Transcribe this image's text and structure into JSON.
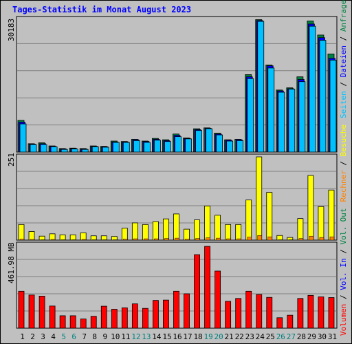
{
  "title": "Tages-Statistik im Monat August 2023",
  "colors": {
    "background": "#c0c0c0",
    "title": "#0000ff",
    "hits": "#008040",
    "files": "#0000ff",
    "pages": "#00c0ff",
    "visits": "#ffff00",
    "sites": "#ff8000",
    "kbytes": "#ff0000",
    "weekend": "#008080",
    "grid": "#808080"
  },
  "legend_top": [
    {
      "label": "Anfragen",
      "color": "#008040"
    },
    {
      "label": " / ",
      "color": "#000000"
    },
    {
      "label": "Dateien",
      "color": "#0000ff"
    },
    {
      "label": " / ",
      "color": "#000000"
    },
    {
      "label": "Seiten",
      "color": "#00c0ff"
    }
  ],
  "legend_mid": [
    {
      "label": "Besuche",
      "color": "#ffff00"
    },
    {
      "label": " / ",
      "color": "#000000"
    },
    {
      "label": "Rechner",
      "color": "#ff8000"
    }
  ],
  "legend_bot": [
    {
      "label": "Vol. Out",
      "color": "#008040"
    },
    {
      "label": " / ",
      "color": "#000000"
    },
    {
      "label": "Vol. In",
      "color": "#0000ff"
    },
    {
      "label": " / ",
      "color": "#000000"
    },
    {
      "label": "Volumen",
      "color": "#ff0000"
    }
  ],
  "chart_data": [
    {
      "type": "bar",
      "panel": "hits",
      "ymax_label": "30183",
      "ylim": [
        0,
        30183
      ],
      "categories": [
        "1",
        "2",
        "3",
        "4",
        "5",
        "6",
        "7",
        "8",
        "9",
        "10",
        "11",
        "12",
        "13",
        "14",
        "15",
        "16",
        "17",
        "18",
        "19",
        "20",
        "21",
        "22",
        "23",
        "24",
        "25",
        "26",
        "27",
        "28",
        "29",
        "30",
        "31"
      ],
      "weekend_days": [
        "5",
        "6",
        "12",
        "13",
        "19",
        "20",
        "26",
        "27"
      ],
      "series": [
        {
          "name": "Anfragen",
          "values": [
            7200,
            1900,
            2100,
            1400,
            800,
            900,
            800,
            1400,
            1300,
            2500,
            2400,
            2900,
            2500,
            3100,
            2800,
            4100,
            3200,
            5300,
            5500,
            4300,
            2800,
            2900,
            17600,
            30100,
            19800,
            14100,
            14600,
            17100,
            29800,
            26600,
            22300
          ]
        },
        {
          "name": "Dateien",
          "values": [
            6800,
            1800,
            1900,
            1300,
            700,
            800,
            700,
            1300,
            1200,
            2300,
            2300,
            2800,
            2400,
            2900,
            2600,
            3800,
            3100,
            5100,
            5400,
            4100,
            2700,
            2800,
            17100,
            29900,
            19600,
            13900,
            14400,
            16500,
            29100,
            26000,
            21300
          ]
        },
        {
          "name": "Seiten",
          "values": [
            6400,
            1700,
            1700,
            1200,
            600,
            700,
            600,
            1200,
            1100,
            2200,
            2200,
            2600,
            2200,
            2700,
            2400,
            3500,
            3000,
            4900,
            5300,
            3900,
            2500,
            2600,
            16700,
            29700,
            19100,
            13600,
            14300,
            16000,
            28600,
            25400,
            20900
          ]
        }
      ]
    },
    {
      "type": "bar",
      "panel": "visits",
      "ymax_label": "251",
      "ylim": [
        0,
        251
      ],
      "categories": [
        "1",
        "2",
        "3",
        "4",
        "5",
        "6",
        "7",
        "8",
        "9",
        "10",
        "11",
        "12",
        "13",
        "14",
        "15",
        "16",
        "17",
        "18",
        "19",
        "20",
        "21",
        "22",
        "23",
        "24",
        "25",
        "26",
        "27",
        "28",
        "29",
        "30",
        "31"
      ],
      "series": [
        {
          "name": "Besuche",
          "values": [
            47,
            26,
            12,
            19,
            16,
            16,
            22,
            13,
            13,
            11,
            36,
            52,
            47,
            56,
            64,
            79,
            33,
            61,
            103,
            75,
            47,
            47,
            121,
            251,
            144,
            14,
            8,
            65,
            195,
            101,
            151
          ]
        },
        {
          "name": "Rechner",
          "values": [
            3,
            2,
            1,
            2,
            1,
            1,
            2,
            1,
            1,
            1,
            3,
            4,
            4,
            4,
            5,
            6,
            3,
            5,
            7,
            6,
            4,
            4,
            9,
            14,
            10,
            1,
            1,
            5,
            12,
            8,
            10
          ]
        }
      ]
    },
    {
      "type": "bar",
      "panel": "volume",
      "ymax_label": "461.98 MB",
      "ylim": [
        0,
        461.98
      ],
      "categories": [
        "1",
        "2",
        "3",
        "4",
        "5",
        "6",
        "7",
        "8",
        "9",
        "10",
        "11",
        "12",
        "13",
        "14",
        "15",
        "16",
        "17",
        "18",
        "19",
        "20",
        "21",
        "22",
        "23",
        "24",
        "25",
        "26",
        "27",
        "28",
        "29",
        "30",
        "31"
      ],
      "series": [
        {
          "name": "Volumen",
          "values": [
            205,
            184,
            178,
            123,
            69,
            69,
            51,
            66,
            122,
            105,
            113,
            135,
            110,
            154,
            156,
            205,
            191,
            408,
            454,
            317,
            149,
            165,
            205,
            187,
            171,
            58,
            72,
            165,
            182,
            174,
            170
          ]
        }
      ]
    }
  ]
}
